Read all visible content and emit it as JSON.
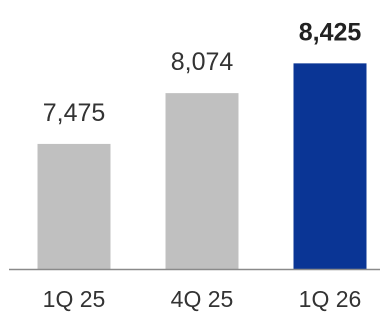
{
  "chart_data": {
    "type": "bar",
    "categories": [
      "1Q 25",
      "4Q 25",
      "1Q 26"
    ],
    "values": [
      7475,
      8074,
      8425
    ],
    "data_labels": [
      "7,475",
      "8,074",
      "8,425"
    ],
    "ylim": [
      6000,
      8500
    ],
    "grid": false,
    "legend": "none",
    "title": "",
    "xlabel": "",
    "ylabel": "",
    "highlight_index": 2,
    "colors": {
      "bar_default": "#c0c0c0",
      "bar_highlight": "#0a3595",
      "axis": "#8a8a8a",
      "label": "#333333",
      "label_highlight": "#222222"
    }
  }
}
